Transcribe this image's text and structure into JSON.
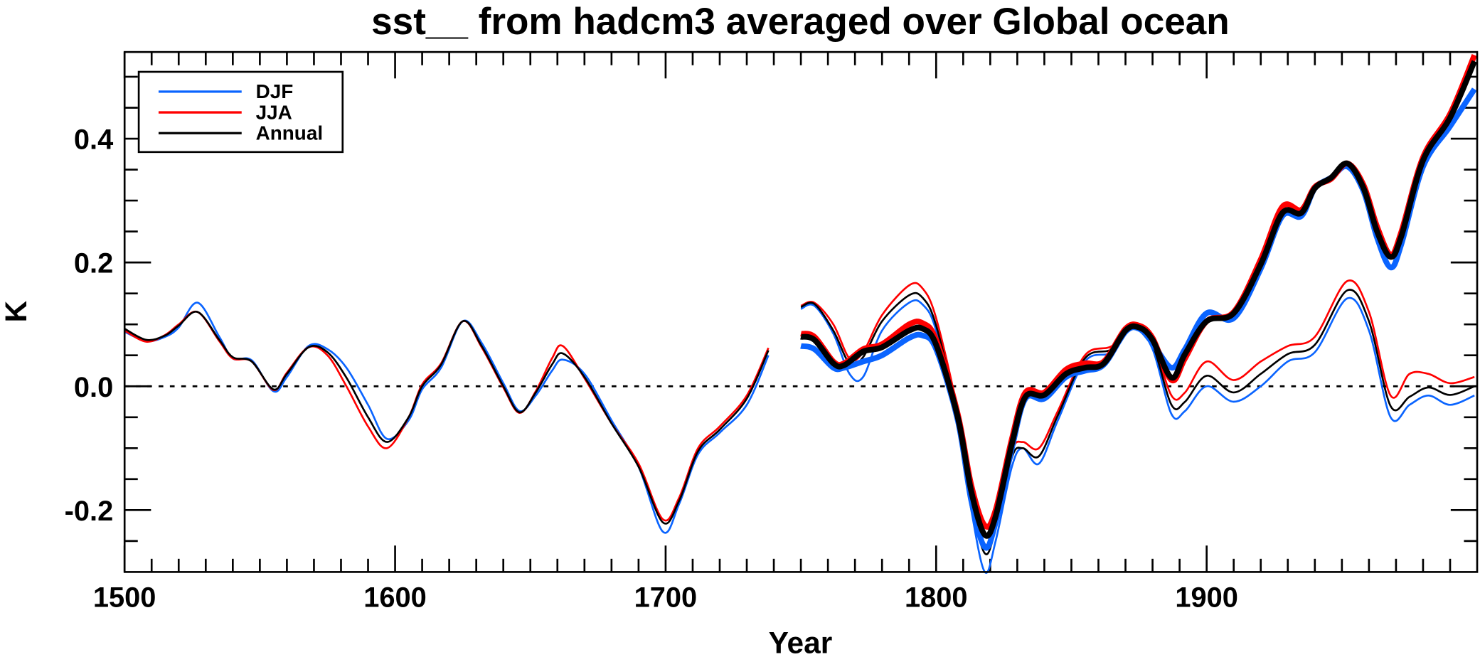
{
  "chart_data": {
    "type": "line",
    "title": "sst__ from hadcm3 averaged over Global ocean",
    "xlabel": "Year",
    "ylabel": "K",
    "xlim": [
      1500,
      2000
    ],
    "ylim": [
      -0.3,
      0.54
    ],
    "xticks": [
      1500,
      1600,
      1700,
      1800,
      1900
    ],
    "xtick_labels": [
      "1500",
      "1600",
      "1700",
      "1800",
      "1900"
    ],
    "yticks": [
      0.4,
      0.2,
      0.0,
      -0.2
    ],
    "ytick_labels": [
      "0.4",
      "0.2",
      "0.0",
      "-0.2"
    ],
    "zero_line": "dotted",
    "legend": {
      "placement": "top-left",
      "entries": [
        {
          "label": "DJF",
          "color": "#0a64ff"
        },
        {
          "label": "JJA",
          "color": "#ff0000"
        },
        {
          "label": "Annual",
          "color": "#000000"
        }
      ]
    },
    "segments": [
      {
        "style": "thin",
        "x": [
          1500,
          1508,
          1515,
          1520,
          1527,
          1535,
          1540,
          1547,
          1555,
          1560,
          1568,
          1575,
          1582,
          1590,
          1597,
          1605,
          1610,
          1617,
          1625,
          1632,
          1640,
          1646,
          1652,
          1658,
          1662,
          1670,
          1680,
          1690,
          1699,
          1705,
          1712,
          1720,
          1730,
          1738
        ],
        "series": [
          {
            "name": "DJF",
            "values": [
              0.088,
              0.073,
              0.08,
              0.095,
              0.135,
              0.08,
              0.045,
              0.042,
              -0.008,
              0.015,
              0.065,
              0.06,
              0.03,
              -0.03,
              -0.085,
              -0.055,
              -0.005,
              0.03,
              0.105,
              0.07,
              0.005,
              -0.04,
              -0.015,
              0.025,
              0.043,
              0.02,
              -0.055,
              -0.13,
              -0.235,
              -0.19,
              -0.11,
              -0.075,
              -0.03,
              0.05
            ]
          },
          {
            "name": "JJA",
            "values": [
              0.09,
              0.072,
              0.083,
              0.1,
              0.12,
              0.073,
              0.045,
              0.04,
              -0.006,
              0.022,
              0.063,
              0.05,
              0.0,
              -0.065,
              -0.1,
              -0.05,
              0.003,
              0.037,
              0.105,
              0.063,
              -0.002,
              -0.043,
              -0.008,
              0.045,
              0.065,
              0.013,
              -0.06,
              -0.125,
              -0.215,
              -0.18,
              -0.1,
              -0.065,
              -0.015,
              0.062
            ]
          },
          {
            "name": "Annual",
            "values": [
              0.093,
              0.075,
              0.082,
              0.098,
              0.12,
              0.075,
              0.047,
              0.04,
              -0.005,
              0.02,
              0.063,
              0.055,
              0.014,
              -0.05,
              -0.09,
              -0.05,
              0.0,
              0.035,
              0.105,
              0.065,
              0.0,
              -0.042,
              -0.01,
              0.035,
              0.053,
              0.015,
              -0.06,
              -0.13,
              -0.22,
              -0.185,
              -0.105,
              -0.07,
              -0.02,
              0.058
            ]
          }
        ]
      },
      {
        "style": "thin",
        "x": [
          1750,
          1755,
          1762,
          1768,
          1773,
          1780,
          1790,
          1795,
          1800,
          1808,
          1813,
          1818,
          1822,
          1828,
          1832,
          1838,
          1845,
          1855,
          1865,
          1873,
          1880,
          1887,
          1892,
          1900,
          1910,
          1920,
          1930,
          1940,
          1952,
          1960,
          1968,
          1975,
          1982,
          1990,
          1999
        ],
        "series": [
          {
            "name": "DJF",
            "values": [
              0.125,
              0.13,
              0.085,
              0.02,
              0.015,
              0.09,
              0.135,
              0.132,
              0.09,
              -0.06,
              -0.2,
              -0.3,
              -0.25,
              -0.13,
              -0.1,
              -0.125,
              -0.055,
              0.04,
              0.055,
              0.095,
              0.06,
              -0.045,
              -0.04,
              0.0,
              -0.025,
              0.0,
              0.04,
              0.055,
              0.142,
              0.09,
              -0.05,
              -0.03,
              -0.015,
              -0.03,
              -0.015
            ]
          },
          {
            "name": "JJA",
            "values": [
              0.13,
              0.135,
              0.1,
              0.045,
              0.055,
              0.115,
              0.163,
              0.158,
              0.11,
              -0.04,
              -0.175,
              -0.255,
              -0.22,
              -0.105,
              -0.09,
              -0.1,
              -0.04,
              0.05,
              0.065,
              0.1,
              0.072,
              -0.015,
              -0.01,
              0.04,
              0.01,
              0.04,
              0.065,
              0.08,
              0.17,
              0.12,
              -0.015,
              0.02,
              0.02,
              0.005,
              0.015
            ]
          },
          {
            "name": "Annual",
            "values": [
              0.128,
              0.133,
              0.09,
              0.037,
              0.047,
              0.105,
              0.147,
              0.143,
              0.098,
              -0.05,
              -0.185,
              -0.27,
              -0.23,
              -0.115,
              -0.1,
              -0.113,
              -0.047,
              0.045,
              0.06,
              0.098,
              0.067,
              -0.03,
              -0.025,
              0.017,
              -0.01,
              0.02,
              0.052,
              0.067,
              0.155,
              0.105,
              -0.032,
              -0.017,
              -0.002,
              -0.014,
              0.0
            ]
          }
        ]
      },
      {
        "style": "thick",
        "x": [
          1750,
          1755,
          1762,
          1766,
          1773,
          1780,
          1790,
          1795,
          1800,
          1808,
          1813,
          1818,
          1822,
          1828,
          1833,
          1840,
          1848,
          1855,
          1862,
          1870,
          1875,
          1880,
          1887,
          1892,
          1900,
          1910,
          1920,
          1928,
          1935,
          1940,
          1946,
          1952,
          1958,
          1963,
          1968,
          1972,
          1980,
          1990,
          1999
        ],
        "series": [
          {
            "name": "DJF",
            "values": [
              0.065,
              0.06,
              0.03,
              0.03,
              0.04,
              0.05,
              0.078,
              0.082,
              0.06,
              -0.055,
              -0.185,
              -0.26,
              -0.22,
              -0.1,
              -0.02,
              -0.02,
              0.015,
              0.025,
              0.035,
              0.088,
              0.093,
              0.07,
              0.03,
              0.06,
              0.118,
              0.11,
              0.19,
              0.275,
              0.275,
              0.32,
              0.337,
              0.355,
              0.315,
              0.24,
              0.192,
              0.23,
              0.355,
              0.42,
              0.48
            ]
          },
          {
            "name": "JJA",
            "values": [
              0.085,
              0.08,
              0.04,
              0.037,
              0.06,
              0.068,
              0.1,
              0.102,
              0.075,
              -0.045,
              -0.16,
              -0.225,
              -0.2,
              -0.085,
              -0.01,
              -0.01,
              0.027,
              0.037,
              0.04,
              0.093,
              0.098,
              0.078,
              0.01,
              0.045,
              0.105,
              0.12,
              0.205,
              0.29,
              0.285,
              0.322,
              0.335,
              0.36,
              0.325,
              0.258,
              0.213,
              0.25,
              0.37,
              0.44,
              0.535
            ]
          },
          {
            "name": "Annual",
            "values": [
              0.08,
              0.075,
              0.037,
              0.034,
              0.056,
              0.063,
              0.09,
              0.093,
              0.067,
              -0.05,
              -0.17,
              -0.24,
              -0.21,
              -0.093,
              -0.017,
              -0.014,
              0.02,
              0.03,
              0.037,
              0.09,
              0.095,
              0.075,
              0.014,
              0.052,
              0.105,
              0.118,
              0.197,
              0.28,
              0.28,
              0.32,
              0.337,
              0.36,
              0.32,
              0.25,
              0.209,
              0.243,
              0.365,
              0.434,
              0.525
            ]
          }
        ]
      }
    ]
  }
}
